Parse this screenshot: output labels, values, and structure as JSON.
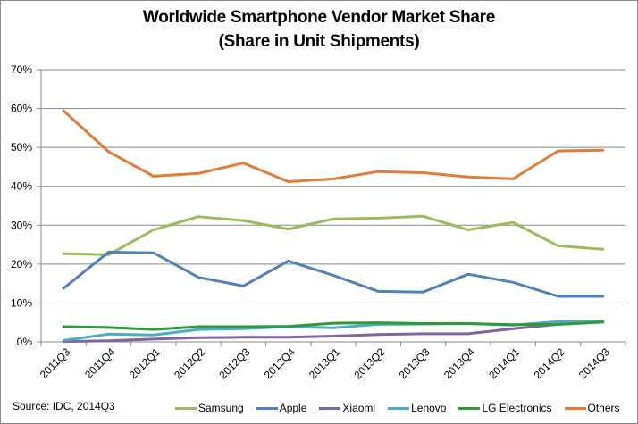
{
  "chart_data": {
    "type": "line",
    "title": "Worldwide Smartphone Vendor Market Share",
    "subtitle": "(Share in Unit Shipments)",
    "xlabel": "",
    "ylabel": "",
    "ylim": [
      0,
      70
    ],
    "yticks": [
      0,
      10,
      20,
      30,
      40,
      50,
      60,
      70
    ],
    "ytick_labels": [
      "0%",
      "10%",
      "20%",
      "30%",
      "40%",
      "50%",
      "60%",
      "70%"
    ],
    "grid": true,
    "legend_position": "bottom",
    "categories": [
      "2011Q3",
      "2011Q4",
      "2012Q1",
      "2012Q2",
      "2012Q3",
      "2012Q4",
      "2013Q1",
      "2013Q2",
      "2013Q3",
      "2013Q4",
      "2014Q1",
      "2014Q2",
      "2014Q3"
    ],
    "series": [
      {
        "name": "Samsung",
        "color": "#9bbb59",
        "values": [
          22.7,
          22.4,
          28.8,
          32.2,
          31.2,
          29.0,
          31.6,
          31.8,
          32.3,
          28.8,
          30.7,
          24.7,
          23.8
        ]
      },
      {
        "name": "Apple",
        "color": "#4f81bd",
        "values": [
          13.8,
          23.1,
          22.9,
          16.6,
          14.4,
          20.8,
          17.1,
          13.0,
          12.8,
          17.4,
          15.3,
          11.7,
          11.7
        ]
      },
      {
        "name": "Xiaomi",
        "color": "#8064a2",
        "values": [
          0.1,
          0.3,
          0.7,
          1.1,
          1.2,
          1.2,
          1.5,
          1.9,
          2.1,
          2.1,
          3.4,
          4.5,
          5.1
        ]
      },
      {
        "name": "Lenovo",
        "color": "#4bacc6",
        "values": [
          0.4,
          2.0,
          1.8,
          3.2,
          3.4,
          3.9,
          3.6,
          4.5,
          4.6,
          4.7,
          4.3,
          5.2,
          5.2
        ]
      },
      {
        "name": "LG Electronics",
        "color": "#2e9a3a",
        "values": [
          3.9,
          3.7,
          3.2,
          3.9,
          3.9,
          4.0,
          4.8,
          4.9,
          4.7,
          4.7,
          4.4,
          4.5,
          5.1
        ]
      },
      {
        "name": "Others",
        "color": "#e07b39",
        "values": [
          59.4,
          48.9,
          42.6,
          43.3,
          46.0,
          41.2,
          41.9,
          43.8,
          43.5,
          42.4,
          41.9,
          49.1,
          49.3
        ]
      }
    ],
    "annotation": "Source: IDC, 2014Q3"
  }
}
